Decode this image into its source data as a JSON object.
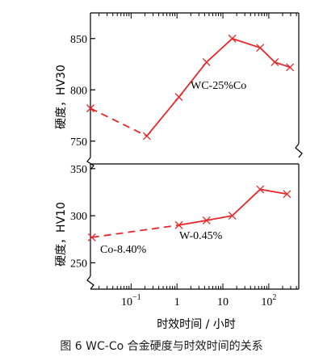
{
  "caption": "图 6   WC-Co 合金硬度与时效时间的关系",
  "chart_data": [
    {
      "type": "line",
      "ylabel": "硬度，HV30",
      "xlabel": "时效时间 / 小时",
      "xscale": "log",
      "xlim": [
        0.013,
        450
      ],
      "ylim": [
        738,
        875
      ],
      "yticks": [
        750,
        800,
        850
      ],
      "annotation": "WC-25%Co",
      "series": [
        {
          "style": "dashed",
          "points": [
            {
              "x": 0.013,
              "y": 782
            },
            {
              "x": 0.22,
              "y": 755
            }
          ]
        },
        {
          "style": "solid",
          "points": [
            {
              "x": 0.22,
              "y": 755
            },
            {
              "x": 1.1,
              "y": 793
            },
            {
              "x": 4.4,
              "y": 827
            },
            {
              "x": 16,
              "y": 850
            },
            {
              "x": 65,
              "y": 841
            },
            {
              "x": 135,
              "y": 827
            },
            {
              "x": 290,
              "y": 822
            }
          ]
        }
      ]
    },
    {
      "type": "line",
      "ylabel": "硬度，HV10",
      "xlabel": "时效时间 / 小时",
      "xscale": "log",
      "xlim": [
        0.013,
        450
      ],
      "ylim": [
        222,
        355
      ],
      "yticks": [
        250,
        300,
        350
      ],
      "xticks": [
        {
          "value": 0.1,
          "label": "10",
          "exp": "−1"
        },
        {
          "value": 1,
          "label": "1",
          "exp": ""
        },
        {
          "value": 10,
          "label": "10",
          "exp": ""
        },
        {
          "value": 100,
          "label": "10",
          "exp": "2"
        }
      ],
      "annotations": [
        "Co-8.40%",
        "W-0.45%"
      ],
      "series": [
        {
          "style": "dashed",
          "points": [
            {
              "x": 0.014,
              "y": 277
            },
            {
              "x": 1.1,
              "y": 290
            }
          ]
        },
        {
          "style": "solid",
          "points": [
            {
              "x": 1.1,
              "y": 290
            },
            {
              "x": 4.4,
              "y": 295
            },
            {
              "x": 16,
              "y": 300
            },
            {
              "x": 65,
              "y": 328
            },
            {
              "x": 250,
              "y": 323
            }
          ]
        }
      ]
    }
  ],
  "colors": {
    "series": "#e8262a",
    "axis": "#000000"
  }
}
